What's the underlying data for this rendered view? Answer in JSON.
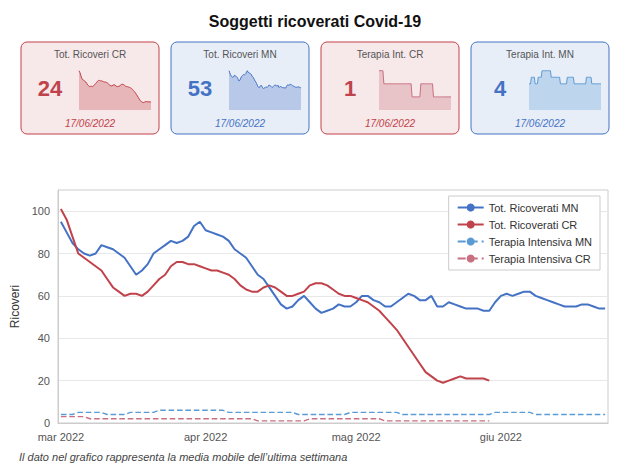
{
  "chart_data": {
    "type": "line",
    "title": "Soggetti ricoverati Covid-19",
    "subtitle": "Il dato nel grafico rappresenta la media mobile dell’ultima settimana",
    "ylabel": "Ricoveri",
    "categories": [
      "mar 2022",
      null,
      null,
      null,
      null,
      null,
      null,
      null,
      null,
      null,
      null,
      null,
      null,
      null,
      null,
      null,
      null,
      null,
      null,
      null,
      null,
      null,
      null,
      null,
      null,
      "apr 2022",
      null,
      null,
      null,
      null,
      null,
      null,
      null,
      null,
      null,
      null,
      null,
      null,
      null,
      null,
      null,
      null,
      null,
      null,
      null,
      null,
      null,
      null,
      null,
      null,
      null,
      "mag 2022",
      null,
      null,
      null,
      null,
      null,
      null,
      null,
      null,
      null,
      null,
      null,
      null,
      null,
      null,
      null,
      null,
      null,
      null,
      null,
      null,
      null,
      null,
      null,
      null,
      "giu 2022",
      null,
      null,
      null,
      null,
      null,
      null,
      null,
      null,
      null,
      null,
      null,
      null,
      null,
      null,
      null,
      null,
      null,
      null
    ],
    "series": [
      {
        "name": "Tot. Ricoverati MN",
        "color": "#4472c4",
        "line_style": "solid",
        "values": [
          95,
          90,
          85,
          82,
          80,
          79,
          80,
          84,
          83,
          82,
          80,
          78,
          74,
          70,
          72,
          75,
          80,
          82,
          84,
          86,
          85,
          86,
          88,
          93,
          95,
          91,
          90,
          89,
          88,
          86,
          82,
          80,
          78,
          74,
          70,
          68,
          64,
          60,
          56,
          54,
          55,
          58,
          60,
          57,
          54,
          52,
          53,
          54,
          56,
          55,
          55,
          57,
          60,
          60,
          58,
          57,
          55,
          55,
          57,
          59,
          61,
          60,
          58,
          58,
          60,
          55,
          55,
          57,
          56,
          55,
          54,
          54,
          54,
          53,
          53,
          57,
          60,
          61,
          60,
          61,
          62,
          62,
          60,
          59,
          58,
          57,
          56,
          55,
          55,
          55,
          56,
          56,
          55,
          54,
          54
        ]
      },
      {
        "name": "Tot. Ricoverati CR",
        "color": "#c0424a",
        "line_style": "solid",
        "values": [
          101,
          96,
          88,
          80,
          78,
          76,
          74,
          72,
          68,
          64,
          62,
          60,
          61,
          61,
          60,
          62,
          65,
          68,
          70,
          74,
          76,
          76,
          75,
          75,
          74,
          73,
          72,
          72,
          71,
          70,
          68,
          65,
          63,
          62,
          62,
          64,
          65,
          64,
          62,
          60,
          60,
          61,
          62,
          65,
          66,
          66,
          65,
          63,
          61,
          60,
          60,
          59,
          58,
          57,
          55,
          53,
          50,
          47,
          44,
          40,
          36,
          32,
          28,
          24,
          22,
          20,
          19,
          20,
          21,
          22,
          21,
          21,
          21,
          21,
          20,
          null,
          null,
          null,
          null,
          null,
          null,
          null,
          null,
          null,
          null,
          null,
          null,
          null,
          null,
          null,
          null,
          null,
          null,
          null,
          null
        ]
      },
      {
        "name": "Terapia Intensiva MN",
        "color": "#5b9bd5",
        "line_style": "dashed",
        "values": [
          4,
          4,
          4,
          5,
          5,
          5,
          5,
          5,
          4,
          4,
          4,
          4,
          5,
          5,
          5,
          5,
          5,
          6,
          6,
          6,
          6,
          6,
          6,
          6,
          6,
          6,
          6,
          6,
          6,
          5,
          5,
          5,
          5,
          5,
          5,
          5,
          5,
          5,
          5,
          5,
          5,
          4,
          4,
          4,
          4,
          4,
          4,
          4,
          4,
          4,
          5,
          5,
          5,
          5,
          5,
          5,
          5,
          5,
          5,
          4,
          4,
          4,
          4,
          4,
          4,
          4,
          4,
          4,
          4,
          4,
          4,
          4,
          4,
          4,
          4,
          5,
          5,
          5,
          5,
          5,
          5,
          5,
          4,
          4,
          4,
          4,
          4,
          4,
          4,
          4,
          4,
          4,
          4,
          4,
          4
        ]
      },
      {
        "name": "Terapia Intensiva CR",
        "color": "#c87080",
        "line_style": "dashed",
        "values": [
          3,
          3,
          3,
          3,
          3,
          2,
          2,
          2,
          2,
          2,
          2,
          2,
          2,
          2,
          2,
          2,
          2,
          2,
          2,
          2,
          2,
          2,
          2,
          2,
          2,
          2,
          2,
          2,
          2,
          2,
          2,
          2,
          2,
          2,
          1,
          1,
          1,
          1,
          1,
          1,
          1,
          1,
          1,
          2,
          2,
          2,
          2,
          2,
          2,
          2,
          2,
          2,
          2,
          2,
          2,
          2,
          1,
          1,
          1,
          1,
          1,
          1,
          1,
          1,
          1,
          1,
          1,
          1,
          1,
          1,
          1,
          1,
          1,
          1,
          1,
          null,
          null,
          null,
          null,
          null,
          null,
          null,
          null,
          null,
          null,
          null,
          null,
          null,
          null,
          null,
          null,
          null,
          null,
          null,
          null
        ]
      }
    ],
    "ylim": [
      0,
      110
    ],
    "yticks": [
      0,
      20,
      40,
      60,
      80,
      100
    ],
    "grid": true,
    "legend": "upper right",
    "cards": [
      {
        "label": "Tot. Ricoveri CR",
        "value": "24",
        "date": "17/06/2022",
        "color": "#c0424a",
        "series": "Tot. Ricoverati CR"
      },
      {
        "label": "Tot. Ricoveri MN",
        "value": "53",
        "date": "17/06/2022",
        "color": "#4472c4",
        "series": "Tot. Ricoverati MN"
      },
      {
        "label": "Terapia Int. CR",
        "value": "1",
        "date": "17/06/2022",
        "color": "#c0424a",
        "series": "Terapia Intensiva CR"
      },
      {
        "label": "Terapia Int. MN",
        "value": "4",
        "date": "17/06/2022",
        "color": "#4472c4",
        "series": "Terapia Intensiva MN"
      }
    ]
  }
}
